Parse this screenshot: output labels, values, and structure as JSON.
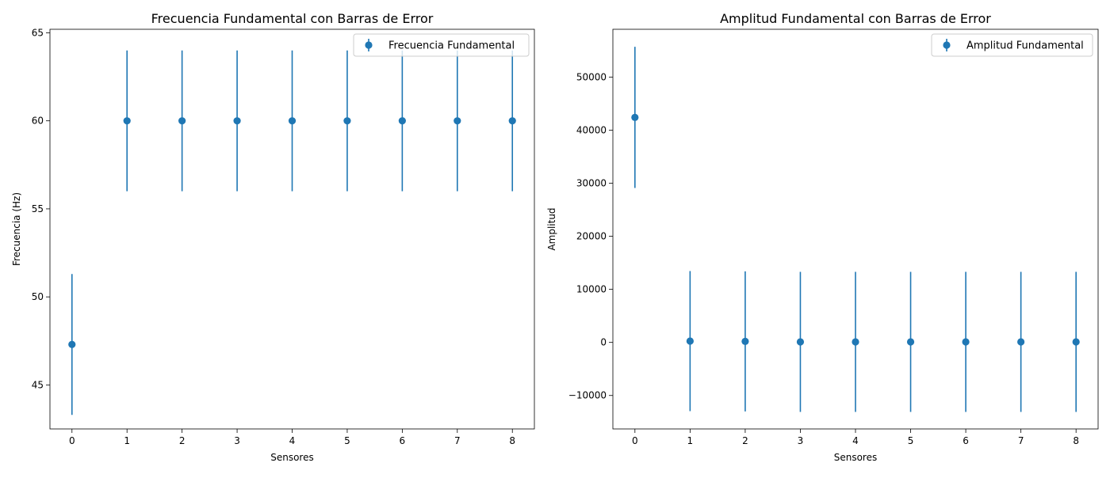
{
  "chart_data": [
    {
      "type": "errorbar",
      "title": "Frecuencia Fundamental con Barras de Error",
      "xlabel": "Sensores",
      "ylabel": "Frecuencia (Hz)",
      "x": [
        0,
        1,
        2,
        3,
        4,
        5,
        6,
        7,
        8
      ],
      "xticks": [
        "0",
        "1",
        "2",
        "3",
        "4",
        "5",
        "6",
        "7",
        "8"
      ],
      "xlim": [
        -0.4,
        8.4
      ],
      "ylim": [
        42.5,
        65.2
      ],
      "yticks": [
        45,
        50,
        55,
        60,
        65
      ],
      "ytick_labels": [
        "45",
        "50",
        "55",
        "60",
        "65"
      ],
      "series": [
        {
          "name": "Frecuencia Fundamental",
          "values": [
            47.3,
            60,
            60,
            60,
            60,
            60,
            60,
            60,
            60
          ],
          "errors": [
            4.0,
            4.0,
            4.0,
            4.0,
            4.0,
            4.0,
            4.0,
            4.0,
            4.0
          ],
          "color": "#1f77b4"
        }
      ],
      "legend": "top-right",
      "grid": false
    },
    {
      "type": "errorbar",
      "title": "Amplitud Fundamental con Barras de Error",
      "xlabel": "Sensores",
      "ylabel": "Amplitud",
      "x": [
        0,
        1,
        2,
        3,
        4,
        5,
        6,
        7,
        8
      ],
      "xticks": [
        "0",
        "1",
        "2",
        "3",
        "4",
        "5",
        "6",
        "7",
        "8"
      ],
      "xlim": [
        -0.4,
        8.4
      ],
      "ylim": [
        -16300,
        59000
      ],
      "yticks": [
        -10000,
        0,
        10000,
        20000,
        30000,
        40000,
        50000
      ],
      "ytick_labels": [
        "−10000",
        "0",
        "10000",
        "20000",
        "30000",
        "40000",
        "50000"
      ],
      "series": [
        {
          "name": "Amplitud Fundamental",
          "values": [
            42400,
            250,
            200,
            100,
            100,
            100,
            100,
            100,
            100
          ],
          "errors": [
            13300,
            13200,
            13200,
            13200,
            13200,
            13200,
            13200,
            13200,
            13200
          ],
          "color": "#1f77b4"
        }
      ],
      "legend": "top-right",
      "grid": false
    }
  ]
}
